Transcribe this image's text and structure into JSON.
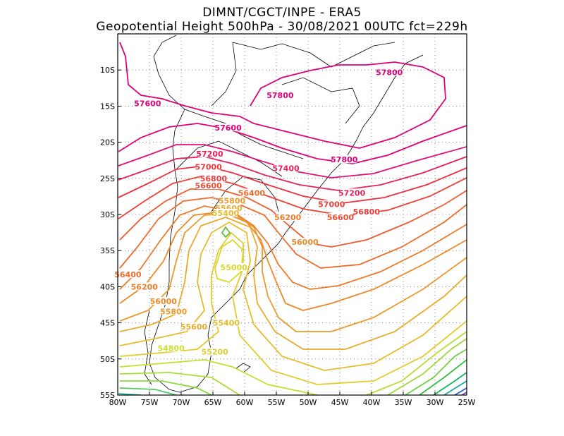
{
  "header": {
    "line1": "DIMNT/CGCT/INPE  -  ERA5",
    "line2": "Geopotential Height 500hPa  -   30/08/2021 00UTC fct=229h"
  },
  "axes": {
    "lon_min": -80,
    "lon_max": -25,
    "lat_min": -55,
    "lat_max": -5,
    "x_ticks": [
      "80W",
      "75W",
      "70W",
      "65W",
      "60W",
      "55W",
      "50W",
      "45W",
      "40W",
      "35W",
      "30W",
      "25W"
    ],
    "y_ticks": [
      "10S",
      "15S",
      "20S",
      "25S",
      "30S",
      "35S",
      "40S",
      "45S",
      "50S",
      "55S"
    ],
    "grid": "dotted"
  },
  "contour_labels": [
    {
      "text": "57800",
      "lon": -37.2,
      "lat": -10.5,
      "color": "#e0007a"
    },
    {
      "text": "57800",
      "lon": -54.4,
      "lat": -13.7,
      "color": "#e0007a"
    },
    {
      "text": "57800",
      "lon": -44.3,
      "lat": -22.6,
      "color": "#e0007a"
    },
    {
      "text": "57600",
      "lon": -75.3,
      "lat": -14.8,
      "color": "#e0007a"
    },
    {
      "text": "57600",
      "lon": -62.6,
      "lat": -18.2,
      "color": "#e0007a"
    },
    {
      "text": "57400",
      "lon": -53.5,
      "lat": -23.8,
      "color": "#e81e5a"
    },
    {
      "text": "57200",
      "lon": -65.5,
      "lat": -21.8,
      "color": "#e81e5a"
    },
    {
      "text": "57200",
      "lon": -43.1,
      "lat": -27.2,
      "color": "#e81e5a"
    },
    {
      "text": "57000",
      "lon": -65.7,
      "lat": -23.6,
      "color": "#ef3a3a"
    },
    {
      "text": "57000",
      "lon": -46.3,
      "lat": -28.8,
      "color": "#ef3a3a"
    },
    {
      "text": "56800",
      "lon": -64.9,
      "lat": -25.2,
      "color": "#ef3a3a"
    },
    {
      "text": "56800",
      "lon": -40.8,
      "lat": -29.8,
      "color": "#ef3a3a"
    },
    {
      "text": "56600",
      "lon": -65.7,
      "lat": -26.2,
      "color": "#ef4a34"
    },
    {
      "text": "56600",
      "lon": -44.9,
      "lat": -30.6,
      "color": "#ef4a34"
    },
    {
      "text": "56400",
      "lon": -58.9,
      "lat": -27.2,
      "color": "#ef6a2a"
    },
    {
      "text": "56400",
      "lon": -78.4,
      "lat": -38.5,
      "color": "#ef6a2a"
    },
    {
      "text": "56200",
      "lon": -53.2,
      "lat": -30.6,
      "color": "#ef7a28"
    },
    {
      "text": "56200",
      "lon": -75.8,
      "lat": -40.2,
      "color": "#ef7a28"
    },
    {
      "text": "56000",
      "lon": -50.5,
      "lat": -34.0,
      "color": "#ee8a26"
    },
    {
      "text": "56000",
      "lon": -72.8,
      "lat": -42.2,
      "color": "#ee8a26"
    },
    {
      "text": "55800",
      "lon": -62.0,
      "lat": -28.3,
      "color": "#ec9a2a"
    },
    {
      "text": "55800",
      "lon": -71.2,
      "lat": -43.6,
      "color": "#ec9a2a"
    },
    {
      "text": "55600",
      "lon": -62.5,
      "lat": -29.3,
      "color": "#eaaa2a"
    },
    {
      "text": "55600",
      "lon": -68.0,
      "lat": -45.7,
      "color": "#eaaa2a"
    },
    {
      "text": "55400",
      "lon": -63.0,
      "lat": -30.0,
      "color": "#e6bb2c"
    },
    {
      "text": "55400",
      "lon": -62.9,
      "lat": -45.2,
      "color": "#e6bb2c"
    },
    {
      "text": "55200",
      "lon": -64.7,
      "lat": -49.2,
      "color": "#e2cc2c"
    },
    {
      "text": "55000",
      "lon": -61.7,
      "lat": -37.5,
      "color": "#d8d82c"
    },
    {
      "text": "54800",
      "lon": -71.6,
      "lat": -48.7,
      "color": "#cce030"
    }
  ]
}
